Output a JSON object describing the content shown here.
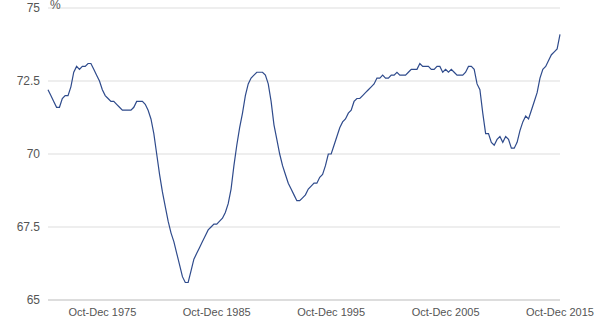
{
  "chart_data": {
    "type": "line",
    "ylabel": "%",
    "color": "#2f4b8c",
    "ylim": [
      65,
      75
    ],
    "yticks": [
      65,
      67.5,
      70,
      72.5,
      75
    ],
    "grid": true,
    "categories": [
      null,
      null,
      null,
      null,
      null,
      null,
      null,
      null,
      null,
      null,
      null,
      null,
      null,
      null,
      null,
      null,
      null,
      null,
      null,
      "Oct-Dec 1975",
      null,
      null,
      null,
      null,
      null,
      null,
      null,
      null,
      null,
      null,
      null,
      null,
      null,
      null,
      null,
      null,
      null,
      null,
      null,
      null,
      null,
      null,
      null,
      null,
      null,
      null,
      null,
      null,
      null,
      null,
      null,
      null,
      null,
      null,
      null,
      null,
      null,
      null,
      null,
      "Oct-Dec 1985",
      null,
      null,
      null,
      null,
      null,
      null,
      null,
      null,
      null,
      null,
      null,
      null,
      null,
      null,
      null,
      null,
      null,
      null,
      null,
      null,
      null,
      null,
      null,
      null,
      null,
      null,
      null,
      null,
      null,
      null,
      null,
      null,
      null,
      null,
      null,
      null,
      null,
      null,
      null,
      "Oct-Dec 1995",
      null,
      null,
      null,
      null,
      null,
      null,
      null,
      null,
      null,
      null,
      null,
      null,
      null,
      null,
      null,
      null,
      null,
      null,
      null,
      null,
      null,
      null,
      null,
      null,
      null,
      null,
      null,
      null,
      null,
      null,
      null,
      null,
      null,
      null,
      null,
      null,
      null,
      null,
      null,
      "Oct-Dec 2005",
      null,
      null,
      null,
      null,
      null,
      null,
      null,
      null,
      null,
      null,
      null,
      null,
      null,
      null,
      null,
      null,
      null,
      null,
      null,
      null,
      null,
      null,
      null,
      null,
      null,
      null,
      null,
      null,
      null,
      null,
      null,
      null,
      null,
      null,
      null,
      null,
      null,
      null,
      null,
      "Oct-Dec 2015"
    ],
    "values": [
      72.2,
      72.0,
      71.8,
      71.6,
      71.6,
      71.9,
      72.0,
      72.0,
      72.3,
      72.8,
      73.0,
      72.9,
      73.0,
      73.0,
      73.1,
      73.1,
      72.9,
      72.7,
      72.5,
      72.2,
      72.0,
      71.9,
      71.8,
      71.8,
      71.7,
      71.6,
      71.5,
      71.5,
      71.5,
      71.5,
      71.6,
      71.8,
      71.8,
      71.8,
      71.7,
      71.5,
      71.2,
      70.7,
      70.0,
      69.3,
      68.7,
      68.2,
      67.7,
      67.3,
      67.0,
      66.6,
      66.2,
      65.8,
      65.6,
      65.6,
      66.0,
      66.4,
      66.6,
      66.8,
      67.0,
      67.2,
      67.4,
      67.5,
      67.6,
      67.6,
      67.7,
      67.8,
      68.0,
      68.3,
      68.8,
      69.6,
      70.3,
      70.9,
      71.4,
      72.0,
      72.4,
      72.6,
      72.7,
      72.8,
      72.8,
      72.8,
      72.7,
      72.4,
      71.8,
      71.0,
      70.5,
      70.0,
      69.6,
      69.3,
      69.0,
      68.8,
      68.6,
      68.4,
      68.4,
      68.5,
      68.6,
      68.8,
      68.9,
      69.0,
      69.0,
      69.2,
      69.3,
      69.6,
      70.0,
      70.0,
      70.3,
      70.6,
      70.9,
      71.1,
      71.2,
      71.4,
      71.5,
      71.8,
      71.9,
      71.9,
      72.0,
      72.1,
      72.2,
      72.3,
      72.4,
      72.6,
      72.6,
      72.7,
      72.6,
      72.6,
      72.7,
      72.7,
      72.8,
      72.7,
      72.7,
      72.7,
      72.8,
      72.9,
      72.9,
      72.9,
      73.1,
      73.0,
      73.0,
      73.0,
      72.9,
      72.9,
      73.0,
      73.0,
      72.8,
      72.9,
      72.8,
      72.9,
      72.8,
      72.7,
      72.7,
      72.7,
      72.8,
      73.0,
      73.0,
      72.9,
      72.4,
      72.2,
      71.4,
      70.7,
      70.7,
      70.4,
      70.3,
      70.5,
      70.6,
      70.4,
      70.6,
      70.5,
      70.2,
      70.2,
      70.4,
      70.8,
      71.1,
      71.3,
      71.2,
      71.5,
      71.8,
      72.1,
      72.6,
      72.9,
      73.0,
      73.2,
      73.4,
      73.5,
      73.6,
      74.1
    ]
  }
}
